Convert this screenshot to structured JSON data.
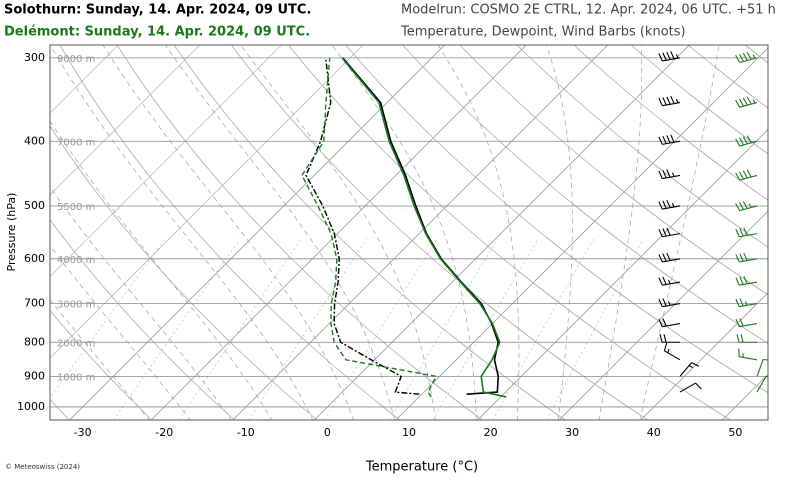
{
  "chart_data": {
    "type": "skewt",
    "title": "Solothurn: Sunday, 14. Apr. 2024, 09 UTC.",
    "subtitle": "Delémont: Sunday, 14. Apr. 2024, 09 UTC.",
    "model_run": "Modelrun: COSMO 2E CTRL, 12. Apr. 2024, 06 UTC. +51 h",
    "caption": "Temperature, Dewpoint, Wind Barbs (knots)",
    "xlabel": "Temperature (°C)",
    "ylabel": "Pressure (hPa)",
    "credit": "© Meteoswiss (2024)",
    "xlim": [
      -34,
      54
    ],
    "ylim": [
      1046,
      287
    ],
    "ylog": true,
    "skew_deg": 45,
    "grid": true,
    "xticks": [
      -30,
      -20,
      -10,
      0,
      10,
      20,
      30,
      40,
      50
    ],
    "yticks": [
      300,
      400,
      500,
      600,
      700,
      800,
      900,
      1000
    ],
    "altitude_labels": [
      "9000 m",
      "7000 m",
      "5500 m",
      "4000 m",
      "3000 m",
      "2000 m",
      "1000 m"
    ],
    "series": [
      {
        "color": "#000000",
        "pressure": [
          957,
          950,
          900,
          850,
          800,
          750,
          700,
          650,
          600,
          550,
          500,
          450,
          400,
          350,
          300
        ],
        "temperature": [
          15.5,
          19.0,
          17.2,
          14.7,
          13.0,
          9.9,
          6.2,
          1.1,
          -4.2,
          -9.1,
          -13.8,
          -18.8,
          -24.8,
          -30.8,
          -40.9
        ],
        "dewpoint": [
          9.7,
          6.5,
          5.3,
          -0.4,
          -6.3,
          -9.4,
          -11.8,
          -14.0,
          -16.7,
          -20.4,
          -25.2,
          -31.0,
          -33.4,
          -36.9,
          -43.0
        ],
        "wind_pressure": [
          950,
          900,
          850,
          800,
          750,
          700,
          650,
          600,
          550,
          500,
          450,
          400,
          350,
          300
        ],
        "wind_speed": [
          10,
          15,
          15,
          20,
          20,
          25,
          25,
          30,
          30,
          35,
          35,
          40,
          45,
          45
        ],
        "wind_direction": [
          60,
          40,
          300,
          270,
          260,
          260,
          260,
          260,
          260,
          260,
          260,
          260,
          260,
          260
        ]
      },
      {
        "color": "#1a7a1a",
        "pressure": [
          966,
          950,
          900,
          850,
          800,
          750,
          700,
          650,
          600,
          550,
          500,
          450,
          400,
          350,
          300
        ],
        "temperature": [
          20.7,
          17.3,
          15.1,
          14.4,
          13.2,
          10.0,
          6.0,
          1.0,
          -4.3,
          -9.2,
          -14.0,
          -19.0,
          -25.0,
          -31.0,
          -41.0
        ],
        "dewpoint": [
          11.5,
          10.5,
          9.6,
          -3.5,
          -7.1,
          -9.8,
          -12.2,
          -14.3,
          -17.0,
          -20.8,
          -25.8,
          -31.5,
          -33.0,
          -37.5,
          -42.5
        ],
        "wind_pressure": [
          950,
          900,
          850,
          800,
          750,
          700,
          650,
          600,
          550,
          500,
          450,
          400,
          350,
          300
        ],
        "wind_speed": [
          10,
          10,
          15,
          20,
          20,
          25,
          30,
          30,
          30,
          35,
          40,
          40,
          45,
          45
        ],
        "wind_direction": [
          30,
          20,
          280,
          270,
          260,
          260,
          260,
          260,
          260,
          255,
          255,
          255,
          255,
          255
        ]
      }
    ]
  }
}
